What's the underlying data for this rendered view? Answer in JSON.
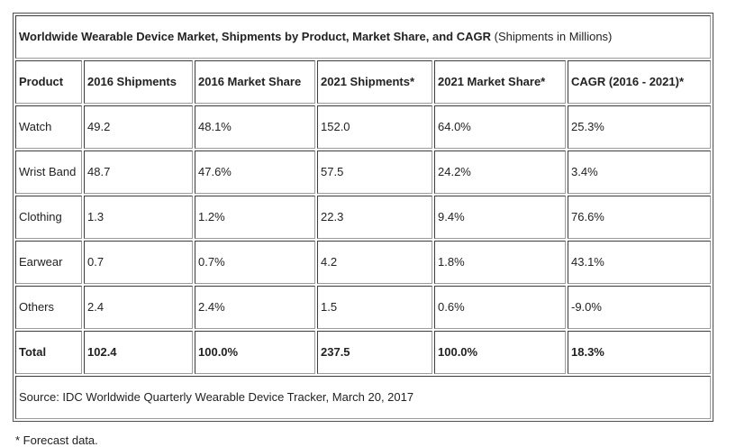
{
  "title": {
    "main": "Worldwide Wearable Device Market, Shipments by Product, Market Share, and CAGR",
    "units": " (Shipments in Millions)"
  },
  "table": {
    "columns": [
      "Product",
      "2016 Shipments",
      "2016 Market Share",
      "2021 Shipments*",
      "2021 Market Share*",
      "CAGR (2016 - 2021)*"
    ],
    "rows": [
      [
        "Watch",
        "49.2",
        "48.1%",
        "152.0",
        "64.0%",
        "25.3%"
      ],
      [
        "Wrist Band",
        "48.7",
        "47.6%",
        "57.5",
        "24.2%",
        "3.4%"
      ],
      [
        "Clothing",
        "1.3",
        "1.2%",
        "22.3",
        "9.4%",
        "76.6%"
      ],
      [
        "Earwear",
        "0.7",
        "0.7%",
        "4.2",
        "1.8%",
        "43.1%"
      ],
      [
        "Others",
        "2.4",
        "2.4%",
        "1.5",
        "0.6%",
        "-9.0%"
      ]
    ],
    "total_row": [
      "Total",
      "102.4",
      "100.0%",
      "237.5",
      "100.0%",
      "18.3%"
    ],
    "source": "Source: IDC Worldwide Quarterly Wearable Device Tracker, March 20, 2017"
  },
  "footnote": "* Forecast data.",
  "colors": {
    "text": "#222222",
    "border_dark": "#3c3c3c",
    "border_light": "#9c9c9c",
    "background": "#ffffff"
  },
  "chart_data": {
    "type": "table",
    "title": "Worldwide Wearable Device Market, Shipments by Product, Market Share, and CAGR (Shipments in Millions)",
    "columns": [
      "Product",
      "2016 Shipments",
      "2016 Market Share",
      "2021 Shipments*",
      "2021 Market Share*",
      "CAGR (2016 - 2021)*"
    ],
    "rows": [
      {
        "product": "Watch",
        "shipments_2016": 49.2,
        "market_share_2016": "48.1%",
        "shipments_2021": 152.0,
        "market_share_2021": "64.0%",
        "cagr_2016_2021": "25.3%"
      },
      {
        "product": "Wrist Band",
        "shipments_2016": 48.7,
        "market_share_2016": "47.6%",
        "shipments_2021": 57.5,
        "market_share_2021": "24.2%",
        "cagr_2016_2021": "3.4%"
      },
      {
        "product": "Clothing",
        "shipments_2016": 1.3,
        "market_share_2016": "1.2%",
        "shipments_2021": 22.3,
        "market_share_2021": "9.4%",
        "cagr_2016_2021": "76.6%"
      },
      {
        "product": "Earwear",
        "shipments_2016": 0.7,
        "market_share_2016": "0.7%",
        "shipments_2021": 4.2,
        "market_share_2021": "1.8%",
        "cagr_2016_2021": "43.1%"
      },
      {
        "product": "Others",
        "shipments_2016": 2.4,
        "market_share_2016": "2.4%",
        "shipments_2021": 1.5,
        "market_share_2021": "0.6%",
        "cagr_2016_2021": "-9.0%"
      },
      {
        "product": "Total",
        "shipments_2016": 102.4,
        "market_share_2016": "100.0%",
        "shipments_2021": 237.5,
        "market_share_2021": "100.0%",
        "cagr_2016_2021": "18.3%"
      }
    ],
    "source": "Source: IDC Worldwide Quarterly Wearable Device Tracker, March 20, 2017",
    "footnote": "* Forecast data."
  }
}
